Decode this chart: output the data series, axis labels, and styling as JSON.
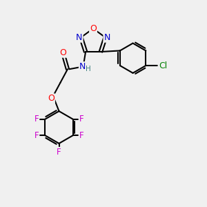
{
  "background_color": "#f0f0f0",
  "bond_color": "#000000",
  "bond_width": 1.5,
  "atom_colors": {
    "O": "#ff0000",
    "N": "#0000cc",
    "F": "#cc00cc",
    "Cl": "#008000",
    "C": "#000000",
    "H": "#408080"
  },
  "font_size": 9,
  "fig_width": 3.0,
  "fig_height": 3.0,
  "dpi": 100
}
